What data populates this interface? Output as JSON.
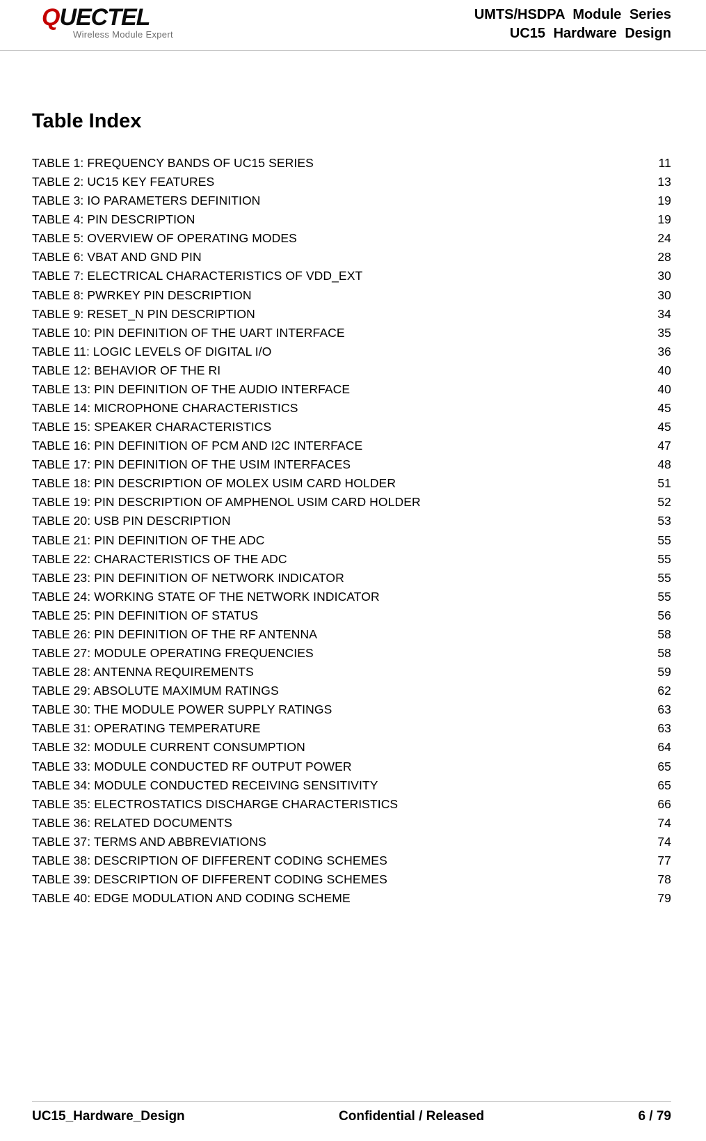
{
  "header": {
    "logo_q": "Q",
    "logo_rest": "UECTEL",
    "logo_tagline": "Wireless Module Expert",
    "line1": "UMTS/HSDPA Module Series",
    "line2": "UC15 Hardware Design"
  },
  "section_title": "Table Index",
  "toc": [
    {
      "label": "TABLE 1: FREQUENCY BANDS OF UC15 SERIES",
      "page": "11"
    },
    {
      "label": "TABLE 2: UC15 KEY FEATURES",
      "page": "13"
    },
    {
      "label": "TABLE 3: IO PARAMETERS DEFINITION",
      "page": "19"
    },
    {
      "label": "TABLE 4: PIN DESCRIPTION",
      "page": "19"
    },
    {
      "label": "TABLE 5: OVERVIEW OF OPERATING MODES",
      "page": "24"
    },
    {
      "label": "TABLE 6: VBAT AND GND PIN",
      "page": "28"
    },
    {
      "label": "TABLE 7: ELECTRICAL CHARACTERISTICS OF VDD_EXT",
      "page": "30"
    },
    {
      "label": "TABLE 8: PWRKEY PIN DESCRIPTION",
      "page": "30"
    },
    {
      "label": "TABLE 9: RESET_N PIN DESCRIPTION",
      "page": "34"
    },
    {
      "label": "TABLE 10: PIN DEFINITION OF THE UART INTERFACE",
      "page": "35"
    },
    {
      "label": "TABLE 11: LOGIC LEVELS OF DIGITAL I/O",
      "page": "36"
    },
    {
      "label": "TABLE 12: BEHAVIOR OF THE RI",
      "page": "40"
    },
    {
      "label": "TABLE 13: PIN DEFINITION OF THE AUDIO INTERFACE",
      "page": "40"
    },
    {
      "label": "TABLE 14: MICROPHONE CHARACTERISTICS",
      "page": "45"
    },
    {
      "label": "TABLE 15: SPEAKER CHARACTERISTICS",
      "page": "45"
    },
    {
      "label": "TABLE 16: PIN DEFINITION OF PCM AND I2C INTERFACE",
      "page": "47"
    },
    {
      "label": "TABLE 17: PIN DEFINITION OF THE USIM INTERFACES",
      "page": "48"
    },
    {
      "label": "TABLE 18: PIN DESCRIPTION OF MOLEX USIM CARD HOLDER",
      "page": "51"
    },
    {
      "label": "TABLE 19: PIN DESCRIPTION OF AMPHENOL USIM CARD HOLDER",
      "page": "52"
    },
    {
      "label": "TABLE 20: USB PIN DESCRIPTION",
      "page": "53"
    },
    {
      "label": "TABLE 21: PIN DEFINITION OF THE ADC",
      "page": "55"
    },
    {
      "label": "TABLE 22: CHARACTERISTICS OF THE ADC",
      "page": "55"
    },
    {
      "label": "TABLE 23: PIN DEFINITION OF NETWORK INDICATOR",
      "page": "55"
    },
    {
      "label": "TABLE 24: WORKING STATE OF THE NETWORK INDICATOR",
      "page": "55"
    },
    {
      "label": "TABLE 25: PIN DEFINITION OF STATUS",
      "page": "56"
    },
    {
      "label": "TABLE 26: PIN DEFINITION OF THE RF ANTENNA",
      "page": "58"
    },
    {
      "label": "TABLE 27: MODULE OPERATING FREQUENCIES",
      "page": "58"
    },
    {
      "label": "TABLE 28: ANTENNA REQUIREMENTS",
      "page": "59"
    },
    {
      "label": "TABLE 29: ABSOLUTE MAXIMUM RATINGS",
      "page": "62"
    },
    {
      "label": "TABLE 30: THE MODULE POWER SUPPLY RATINGS",
      "page": "63"
    },
    {
      "label": "TABLE 31: OPERATING TEMPERATURE",
      "page": "63"
    },
    {
      "label": "TABLE 32: MODULE CURRENT CONSUMPTION",
      "page": "64"
    },
    {
      "label": "TABLE 33: MODULE CONDUCTED RF OUTPUT POWER",
      "page": "65"
    },
    {
      "label": "TABLE 34: MODULE CONDUCTED RECEIVING SENSITIVITY",
      "page": "65"
    },
    {
      "label": "TABLE 35: ELECTROSTATICS DISCHARGE CHARACTERISTICS",
      "page": "66"
    },
    {
      "label": "TABLE 36: RELATED DOCUMENTS",
      "page": "74"
    },
    {
      "label": "TABLE 37: TERMS AND ABBREVIATIONS",
      "page": "74"
    },
    {
      "label": "TABLE 38: DESCRIPTION OF DIFFERENT CODING SCHEMES",
      "page": "77"
    },
    {
      "label": "TABLE 39: DESCRIPTION OF DIFFERENT CODING SCHEMES",
      "page": "78"
    },
    {
      "label": "TABLE 40: EDGE MODULATION AND CODING SCHEME",
      "page": "79"
    }
  ],
  "footer": {
    "left": "UC15_Hardware_Design",
    "center": "Confidential / Released",
    "right": "6 / 79"
  },
  "colors": {
    "text": "#000000",
    "rule": "#c7c7c7",
    "logo_accent": "#c40000",
    "tagline": "#6e6e6e",
    "background": "#ffffff"
  },
  "typography": {
    "body_font": "Arial",
    "section_title_size_pt": 22,
    "toc_size_pt": 13,
    "header_right_size_pt": 15,
    "footer_size_pt": 14
  }
}
